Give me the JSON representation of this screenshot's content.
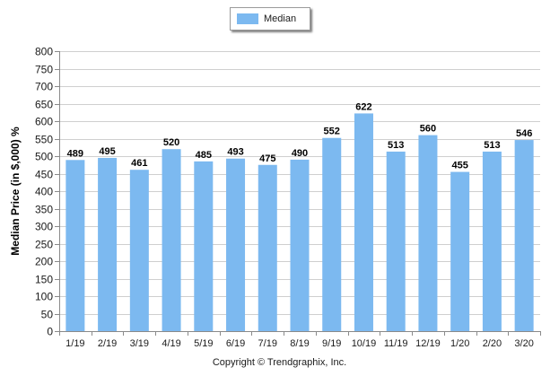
{
  "chart_data": {
    "type": "bar",
    "categories": [
      "1/19",
      "2/19",
      "3/19",
      "4/19",
      "5/19",
      "6/19",
      "7/19",
      "8/19",
      "9/19",
      "10/19",
      "11/19",
      "12/19",
      "1/20",
      "2/20",
      "3/20"
    ],
    "series": [
      {
        "name": "Median",
        "values": [
          489,
          495,
          461,
          520,
          485,
          493,
          475,
          490,
          552,
          622,
          513,
          560,
          455,
          513,
          546
        ]
      }
    ],
    "ylabel": "Median Price (in $,000) %",
    "xlabel": "",
    "ylim": [
      0,
      800
    ],
    "yticks": [
      0,
      50,
      100,
      150,
      200,
      250,
      300,
      350,
      400,
      450,
      500,
      550,
      600,
      650,
      700,
      750,
      800
    ],
    "grid": true,
    "legend_position": "top-center",
    "data_labels": true
  },
  "colors": {
    "bar": "#7cb9f0",
    "grid": "#cfcfcf",
    "axis": "#8a8a8a"
  },
  "footer": {
    "copyright": "Copyright © Trendgraphix, Inc."
  }
}
